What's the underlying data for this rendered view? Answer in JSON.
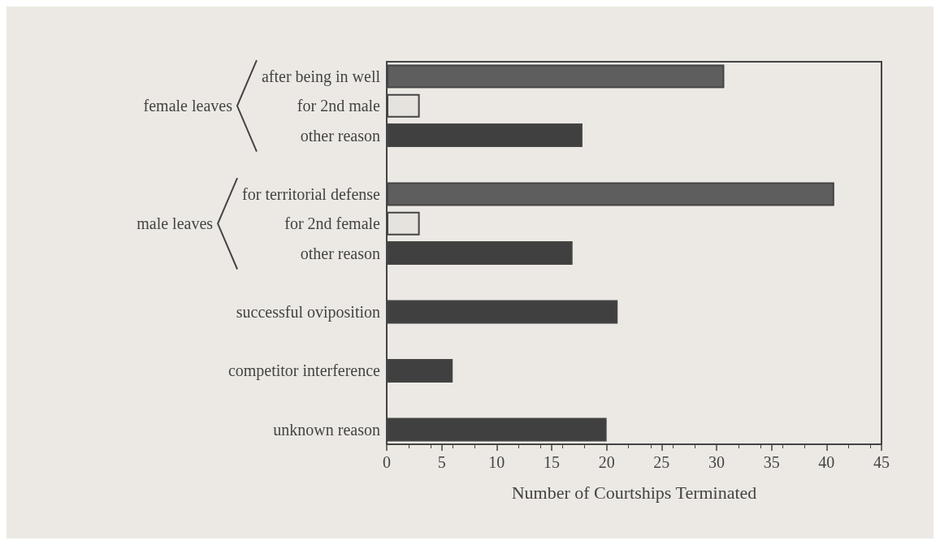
{
  "chart_data": {
    "type": "bar",
    "orientation": "horizontal",
    "xlabel": "Number of Courtships Terminated",
    "categories": [
      "after being in well",
      "for 2nd male",
      "other reason",
      null,
      "for territorial defense",
      "for 2nd female",
      "other reason",
      null,
      "successful oviposition",
      null,
      "competitor interference",
      null,
      "unknown reason"
    ],
    "values": [
      30.7,
      3,
      17.8,
      null,
      40.7,
      3,
      16.9,
      null,
      21,
      null,
      6,
      null,
      20
    ],
    "colors": [
      "#5e5e5e",
      "#e6e3de",
      "#404040",
      null,
      "#5e5e5e",
      "#e6e3de",
      "#404040",
      null,
      "#404040",
      null,
      "#404040",
      null,
      "#404040"
    ],
    "xlim": [
      0,
      45
    ],
    "xticks": [
      0,
      5,
      10,
      15,
      20,
      25,
      30,
      35,
      40,
      45
    ],
    "annotations": [
      "female leaves",
      "male leaves"
    ],
    "grid": false
  }
}
